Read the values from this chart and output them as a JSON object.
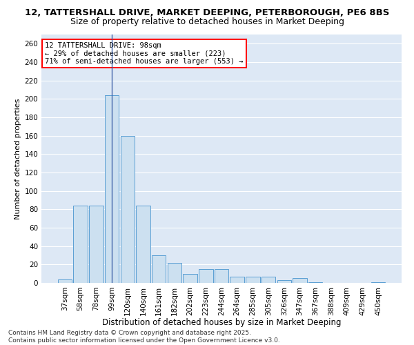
{
  "title1": "12, TATTERSHALL DRIVE, MARKET DEEPING, PETERBOROUGH, PE6 8BS",
  "title2": "Size of property relative to detached houses in Market Deeping",
  "xlabel": "Distribution of detached houses by size in Market Deeping",
  "ylabel": "Number of detached properties",
  "categories": [
    "37sqm",
    "58sqm",
    "78sqm",
    "99sqm",
    "120sqm",
    "140sqm",
    "161sqm",
    "182sqm",
    "202sqm",
    "223sqm",
    "244sqm",
    "264sqm",
    "285sqm",
    "305sqm",
    "326sqm",
    "347sqm",
    "367sqm",
    "388sqm",
    "409sqm",
    "429sqm",
    "450sqm"
  ],
  "values": [
    4,
    84,
    84,
    204,
    160,
    84,
    30,
    22,
    10,
    15,
    15,
    7,
    7,
    7,
    3,
    5,
    1,
    0,
    0,
    0,
    1
  ],
  "bar_color": "#cce0f0",
  "bar_edge_color": "#5b9fd4",
  "marker_index": 3,
  "marker_color": "#4466aa",
  "annotation_line1": "12 TATTERSHALL DRIVE: 98sqm",
  "annotation_line2": "← 29% of detached houses are smaller (223)",
  "annotation_line3": "71% of semi-detached houses are larger (553) →",
  "annotation_box_color": "white",
  "annotation_box_edge": "red",
  "ylim": [
    0,
    270
  ],
  "yticks": [
    0,
    20,
    40,
    60,
    80,
    100,
    120,
    140,
    160,
    180,
    200,
    220,
    240,
    260
  ],
  "bg_color": "#dde8f5",
  "grid_color": "white",
  "footer": "Contains HM Land Registry data © Crown copyright and database right 2025.\nContains public sector information licensed under the Open Government Licence v3.0.",
  "title1_fontsize": 9.5,
  "title2_fontsize": 9,
  "xlabel_fontsize": 8.5,
  "ylabel_fontsize": 8,
  "tick_fontsize": 7.5,
  "annotation_fontsize": 7.5,
  "footer_fontsize": 6.5
}
